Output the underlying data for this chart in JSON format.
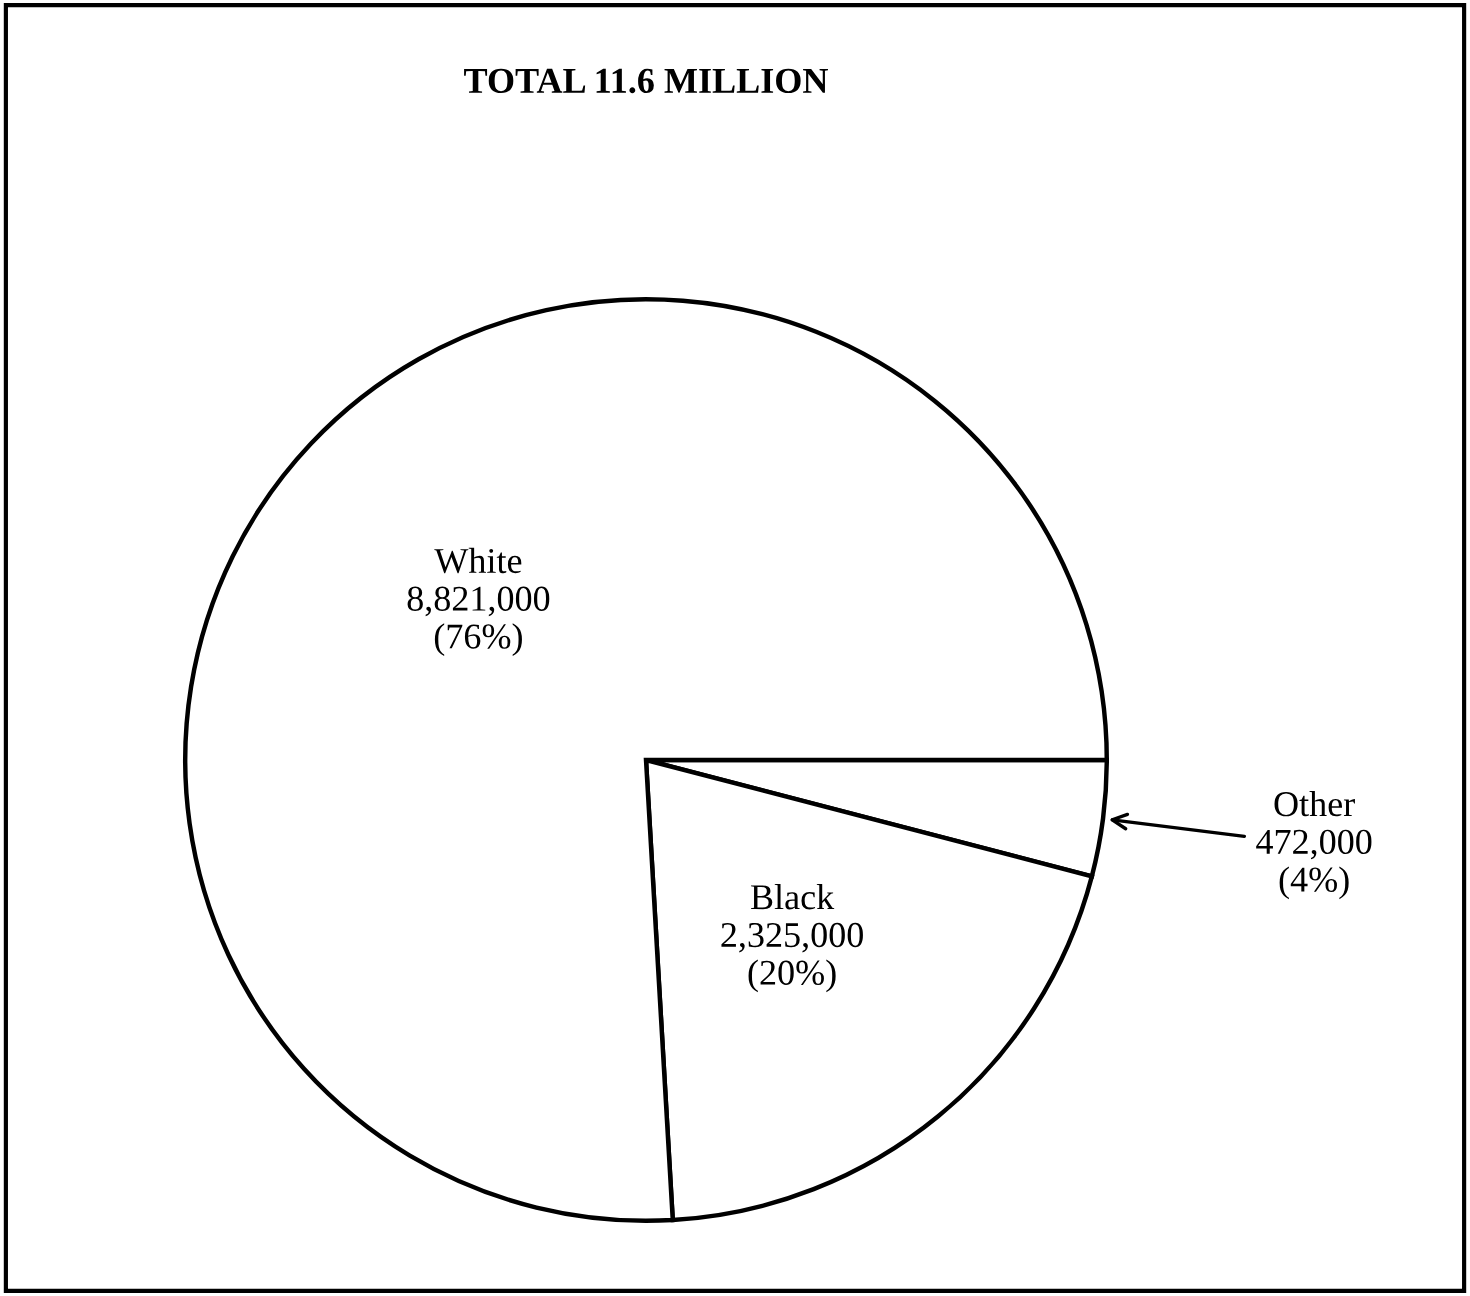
{
  "chart_data": {
    "type": "pie",
    "title": "TOTAL 11.6 MILLION",
    "categories": [
      "Other",
      "Black",
      "White"
    ],
    "values": [
      472000,
      2325000,
      8821000
    ],
    "value_labels": [
      "472,000\n(4%)",
      "2,325,000\n(20%)",
      "8,821,000\n(76%)"
    ],
    "colors": [
      "#ffffff",
      "#ffffff",
      "#ffffff"
    ],
    "legend": false
  }
}
